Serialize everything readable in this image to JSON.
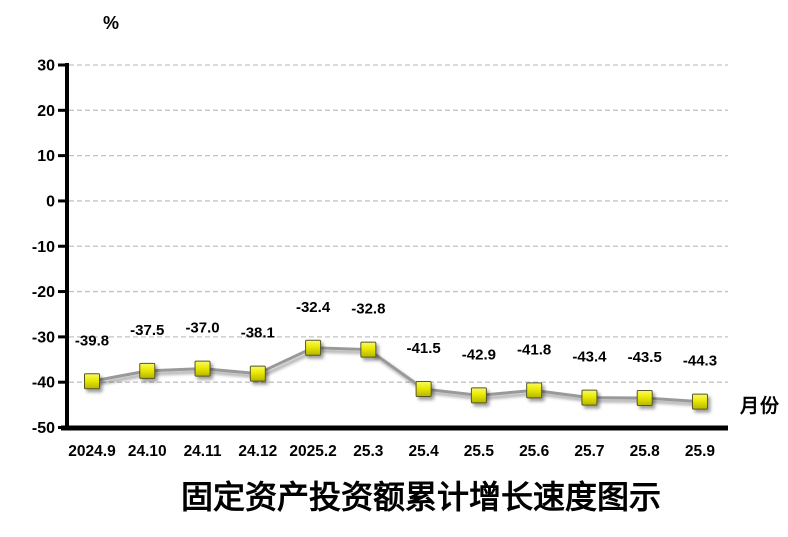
{
  "chart_data": {
    "type": "line",
    "title": "固定资产投资额累计增长速度图示",
    "y_axis_unit": "%",
    "x_axis_label": "月份",
    "categories": [
      "2024.9",
      "24.10",
      "24.11",
      "24.12",
      "2025.2",
      "25.3",
      "25.4",
      "25.5",
      "25.6",
      "25.7",
      "25.8",
      "25.9"
    ],
    "values": [
      -39.8,
      -37.5,
      -37.0,
      -38.1,
      -32.4,
      -32.8,
      -41.5,
      -42.9,
      -41.8,
      -43.4,
      -43.5,
      -44.3
    ],
    "value_labels": [
      "-39.8",
      "-37.5",
      "-37.0",
      "-38.1",
      "-32.4",
      "-32.8",
      "-41.5",
      "-42.9",
      "-41.8",
      "-43.4",
      "-43.5",
      "-44.3"
    ],
    "ylim": [
      -50,
      30
    ],
    "y_ticks": [
      30,
      20,
      10,
      0,
      -10,
      -20,
      -30,
      -40,
      -50
    ],
    "grid": "horizontal-dashed",
    "legend": "none",
    "marker_shape": "square",
    "colors": {
      "line": "#999999",
      "marker_fill_top": "#fbfb62",
      "marker_fill_mid": "#e9e905",
      "marker_fill_bottom": "#b5b500",
      "marker_border": "#55552a",
      "grid_line": "#c3c3c3",
      "axis": "#000000",
      "label_text": "#000000"
    }
  }
}
